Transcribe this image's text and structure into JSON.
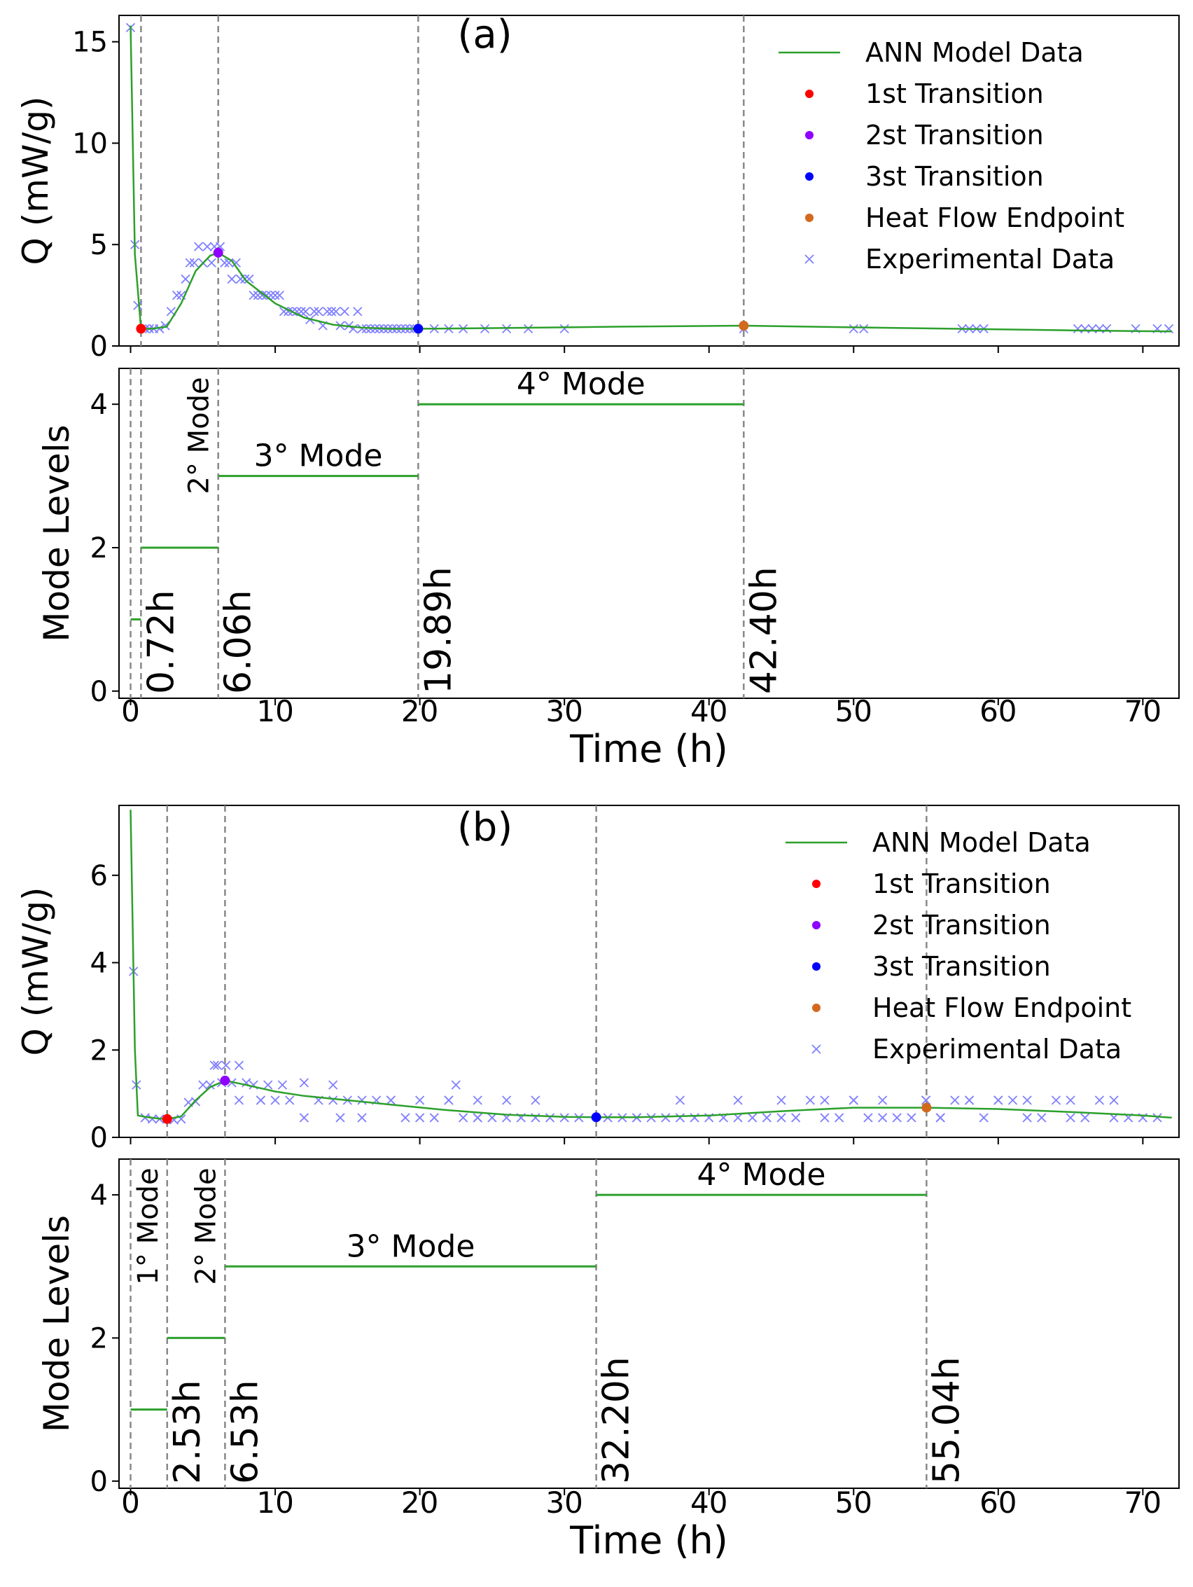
{
  "colors": {
    "model": "#2ca02c",
    "experimental": "#8080ff",
    "t1": "#ff0000",
    "t2": "#8f00ff",
    "t3": "#0000ff",
    "endpoint": "#d2691e",
    "dashes": "#888888"
  },
  "shared": {
    "x_label": "Time (h)",
    "x_ticks": [
      0,
      10,
      20,
      30,
      40,
      50,
      60,
      70
    ],
    "x_range": [
      -0.8,
      72.5
    ],
    "q_label": "Q (mW/g)",
    "mode_label": "Mode Levels",
    "mode_range": [
      -0.1,
      4.5
    ],
    "mode_ticks": [
      0,
      2,
      4
    ]
  },
  "chart_data": [
    {
      "type": "line",
      "panel_label": "(a)",
      "ylim": [
        0,
        16.3
      ],
      "y_ticks": [
        0,
        5,
        10,
        15
      ],
      "legend": {
        "model": "ANN Model Data",
        "t1": "1st Transition",
        "t2": "2st Transition",
        "t3": "3st Transition",
        "endpoint": "Heat Flow Endpoint",
        "experimental": "Experimental Data"
      },
      "model_curve": {
        "x": [
          0,
          0.3,
          0.72,
          1.5,
          2.5,
          3.5,
          4.5,
          5.5,
          6.06,
          7,
          8,
          10,
          12,
          14,
          16,
          18,
          19.89,
          25,
          30,
          35,
          42.4,
          50,
          60,
          65,
          70,
          72
        ],
        "y": [
          15.8,
          4.5,
          0.85,
          0.85,
          0.95,
          2.1,
          3.7,
          4.45,
          4.6,
          4.2,
          3.2,
          2.1,
          1.4,
          1.05,
          0.9,
          0.85,
          0.85,
          0.88,
          0.92,
          0.96,
          1.0,
          0.92,
          0.82,
          0.77,
          0.73,
          0.72
        ]
      },
      "experimental": {
        "x": [
          0,
          0.3,
          0.5,
          1.0,
          1.3,
          1.6,
          2.0,
          2.4,
          2.8,
          3.2,
          3.5,
          3.8,
          4.1,
          4.4,
          4.7,
          5.0,
          5.3,
          5.6,
          5.8,
          6.2,
          6.5,
          6.8,
          7.0,
          7.3,
          7.6,
          7.9,
          8.2,
          8.5,
          8.8,
          9.1,
          9.4,
          9.7,
          10.0,
          10.3,
          10.6,
          10.9,
          11.2,
          11.5,
          11.8,
          12.1,
          12.4,
          12.7,
          13.0,
          13.3,
          13.6,
          13.9,
          14.2,
          14.5,
          14.8,
          15.1,
          15.4,
          15.7,
          16.0,
          16.3,
          16.6,
          16.9,
          17.2,
          17.5,
          17.8,
          18.1,
          18.4,
          18.7,
          19.0,
          19.3,
          19.6,
          21.0,
          22.0,
          23.0,
          24.5,
          26.0,
          27.5,
          30.0,
          42.4,
          50.0,
          50.7,
          57.5,
          58.0,
          58.5,
          59.0,
          65.5,
          66.0,
          66.5,
          67.0,
          67.5,
          69.5,
          71.0,
          71.8
        ],
        "y": [
          15.7,
          5.0,
          2.0,
          0.85,
          0.85,
          0.85,
          0.85,
          1.0,
          1.7,
          2.5,
          2.5,
          3.3,
          4.1,
          4.1,
          4.9,
          4.1,
          4.9,
          4.1,
          4.9,
          4.9,
          4.1,
          4.1,
          3.3,
          4.1,
          3.3,
          3.3,
          3.3,
          2.5,
          2.5,
          2.5,
          2.5,
          2.5,
          2.5,
          2.5,
          1.7,
          1.7,
          1.7,
          1.7,
          1.7,
          1.7,
          1.3,
          1.7,
          1.7,
          1.0,
          1.7,
          1.7,
          1.7,
          1.0,
          1.7,
          1.0,
          0.85,
          1.7,
          0.85,
          0.85,
          0.85,
          0.85,
          0.85,
          0.85,
          0.85,
          0.85,
          0.85,
          0.85,
          0.85,
          0.85,
          0.85,
          0.85,
          0.85,
          0.85,
          0.85,
          0.85,
          0.85,
          0.85,
          0.85,
          0.85,
          0.85,
          0.85,
          0.85,
          0.85,
          0.85,
          0.85,
          0.85,
          0.85,
          0.85,
          0.85,
          0.85,
          0.85,
          0.85
        ]
      },
      "transitions": {
        "t1": [
          0.72,
          0.85
        ],
        "t2": [
          6.06,
          4.6
        ],
        "t3": [
          19.89,
          0.85
        ],
        "endpoint": [
          42.4,
          1.0
        ]
      },
      "mode_panel": {
        "mode_1": {
          "x": [
            0,
            0.72
          ],
          "level": 1,
          "label": ""
        },
        "mode_2": {
          "x": [
            0.72,
            6.06
          ],
          "level": 2,
          "label": "2° Mode"
        },
        "mode_3": {
          "x": [
            6.06,
            19.89
          ],
          "level": 3,
          "label": "3° Mode"
        },
        "mode_4": {
          "x": [
            19.89,
            42.4
          ],
          "level": 4,
          "label": "4° Mode"
        }
      },
      "boundaries": {
        "x": [
          0.72,
          6.06,
          19.89,
          42.4
        ],
        "labels": [
          "0.72h",
          "6.06h",
          "19.89h",
          "42.40h"
        ]
      }
    },
    {
      "type": "line",
      "panel_label": "(b)",
      "ylim": [
        0,
        7.6
      ],
      "y_ticks": [
        0,
        2,
        4,
        6
      ],
      "legend": {
        "model": "ANN Model Data",
        "t1": "1st Transition",
        "t2": "2st Transition",
        "t3": "3st Transition",
        "endpoint": "Heat Flow Endpoint",
        "experimental": "Experimental Data"
      },
      "model_curve": {
        "x": [
          0,
          0.3,
          0.5,
          1.0,
          2.0,
          2.53,
          3.5,
          4.5,
          5.5,
          6.53,
          8,
          10,
          12,
          15,
          18,
          22,
          26,
          30,
          32.2,
          35,
          40,
          45,
          50,
          55.04,
          60,
          65,
          70,
          72
        ],
        "y": [
          7.5,
          2.0,
          0.5,
          0.47,
          0.43,
          0.42,
          0.48,
          0.85,
          1.15,
          1.3,
          1.2,
          1.05,
          0.95,
          0.85,
          0.75,
          0.62,
          0.52,
          0.47,
          0.46,
          0.46,
          0.5,
          0.6,
          0.68,
          0.68,
          0.65,
          0.58,
          0.5,
          0.45
        ]
      },
      "experimental": {
        "x": [
          0.2,
          0.4,
          1.0,
          1.5,
          2.0,
          3.0,
          3.5,
          4.0,
          4.5,
          5.0,
          5.5,
          5.8,
          6.0,
          6.3,
          6.6,
          7.0,
          7.5,
          8.0,
          8.5,
          9.0,
          9.5,
          10.0,
          10.5,
          11.0,
          12.0,
          13.0,
          14.0,
          15.0,
          16.0,
          17.0,
          18.0,
          19.0,
          20.0,
          21.0,
          22.0,
          23.0,
          24.0,
          25.0,
          26.0,
          27.0,
          28.0,
          29.0,
          30.0,
          31.0,
          33.0,
          34.0,
          35.0,
          36.0,
          37.0,
          38.0,
          39.0,
          40.0,
          41.0,
          42.0,
          43.0,
          44.0,
          45.0,
          46.0,
          47.0,
          48.0,
          49.0,
          50.0,
          51.0,
          52.0,
          53.0,
          54.0,
          55.0,
          56.0,
          57.0,
          58.0,
          59.0,
          60.0,
          61.0,
          62.0,
          63.0,
          64.0,
          65.0,
          66.0,
          67.0,
          68.0,
          69.0,
          70.0,
          71.0,
          7.5,
          9.0,
          12.0,
          14.0,
          16.0,
          18.0,
          20.0,
          22.0,
          24.0,
          26.0,
          28.0,
          35.0,
          38.0,
          42.0,
          45.0,
          48.0,
          50.0,
          52.0,
          55.0,
          56.0,
          58.0,
          60.0,
          62.0,
          65.0,
          68.0,
          14.5,
          22.5,
          24.0
        ],
        "y": [
          3.8,
          1.2,
          0.45,
          0.42,
          0.42,
          0.4,
          0.42,
          0.8,
          0.82,
          1.2,
          1.2,
          1.65,
          1.65,
          1.25,
          1.65,
          1.25,
          1.65,
          1.25,
          1.2,
          0.85,
          1.2,
          0.85,
          1.2,
          0.85,
          1.25,
          0.85,
          1.2,
          0.85,
          0.45,
          0.85,
          0.85,
          0.45,
          0.85,
          0.45,
          0.85,
          0.45,
          0.45,
          0.45,
          0.85,
          0.45,
          0.45,
          0.45,
          0.45,
          0.45,
          0.45,
          0.45,
          0.45,
          0.45,
          0.45,
          0.45,
          0.45,
          0.45,
          0.45,
          0.45,
          0.45,
          0.45,
          0.45,
          0.45,
          0.85,
          0.45,
          0.45,
          0.85,
          0.45,
          0.85,
          0.45,
          0.45,
          0.85,
          0.45,
          0.85,
          0.85,
          0.45,
          0.85,
          0.85,
          0.45,
          0.45,
          0.85,
          0.45,
          0.45,
          0.85,
          0.45,
          0.45,
          0.45,
          0.45,
          0.85,
          0.85,
          0.45,
          0.85,
          0.85,
          0.85,
          0.45,
          0.85,
          0.45,
          0.45,
          0.85,
          0.45,
          0.85,
          0.85,
          0.85,
          0.85,
          0.85,
          0.45,
          0.85,
          0.45,
          0.85,
          0.85,
          0.85,
          0.85,
          0.85,
          0.45,
          1.2,
          0.85
        ]
      },
      "transitions": {
        "t1": [
          2.53,
          0.42
        ],
        "t2": [
          6.53,
          1.3
        ],
        "t3": [
          32.2,
          0.46
        ],
        "endpoint": [
          55.04,
          0.68
        ]
      },
      "mode_panel": {
        "mode_1": {
          "x": [
            0,
            2.53
          ],
          "level": 1,
          "label": "1° Mode"
        },
        "mode_2": {
          "x": [
            2.53,
            6.53
          ],
          "level": 2,
          "label": "2° Mode"
        },
        "mode_3": {
          "x": [
            6.53,
            32.2
          ],
          "level": 3,
          "label": "3° Mode"
        },
        "mode_4": {
          "x": [
            32.2,
            55.04
          ],
          "level": 4,
          "label": "4° Mode"
        }
      },
      "boundaries": {
        "x": [
          2.53,
          6.53,
          32.2,
          55.04
        ],
        "labels": [
          "2.53h",
          "6.53h",
          "32.20h",
          "55.04h"
        ]
      }
    }
  ]
}
